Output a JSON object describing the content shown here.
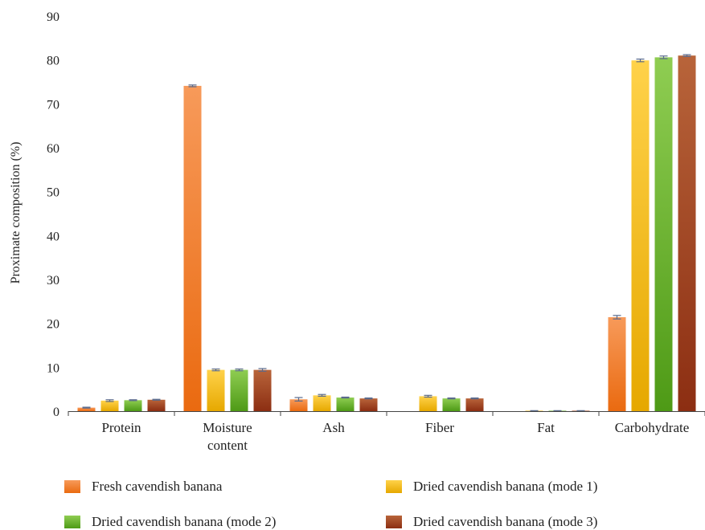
{
  "chart_data": {
    "type": "bar",
    "title": "",
    "xlabel": "",
    "ylabel": "Proximate composition (%)",
    "ylim": [
      0,
      90
    ],
    "yticks": [
      0,
      10,
      20,
      30,
      40,
      50,
      60,
      70,
      80,
      90
    ],
    "categories": [
      "Protein",
      "Moisture content",
      "Ash",
      "Fiber",
      "Fat",
      "Carbohydrate"
    ],
    "category_display": [
      [
        "Protein"
      ],
      [
        "Moisture",
        "content"
      ],
      [
        "Ash"
      ],
      [
        "Fiber"
      ],
      [
        "Fat"
      ],
      [
        "Carbohydrate"
      ]
    ],
    "grid": false,
    "error_bars": true,
    "legend_position": "bottom",
    "series": [
      {
        "name": "Fresh cavendish banana",
        "color_top": "#f79a5a",
        "color_bottom": "#ea6a10",
        "values": [
          0.8,
          74.1,
          2.7,
          0,
          0,
          21.4
        ],
        "errors": [
          0.1,
          0.2,
          0.4,
          0,
          0,
          0.4
        ]
      },
      {
        "name": "Dried cavendish banana (mode 1)",
        "color_top": "#ffd24a",
        "color_bottom": "#e6a800",
        "values": [
          2.4,
          9.4,
          3.6,
          3.4,
          0.1,
          79.9
        ],
        "errors": [
          0.2,
          0.2,
          0.2,
          0.2,
          0,
          0.3
        ]
      },
      {
        "name": "Dried cavendish banana (mode 2)",
        "color_top": "#8fcd52",
        "color_bottom": "#4e9a16",
        "values": [
          2.5,
          9.4,
          3.1,
          2.9,
          0.1,
          80.6
        ],
        "errors": [
          0.1,
          0.2,
          0.1,
          0.1,
          0,
          0.3
        ]
      },
      {
        "name": "Dried cavendish banana (mode 3)",
        "color_top": "#b8643a",
        "color_bottom": "#8c2e12",
        "values": [
          2.6,
          9.4,
          2.9,
          2.9,
          0.1,
          81.0
        ],
        "errors": [
          0.1,
          0.3,
          0.1,
          0.1,
          0,
          0.2
        ]
      }
    ]
  }
}
